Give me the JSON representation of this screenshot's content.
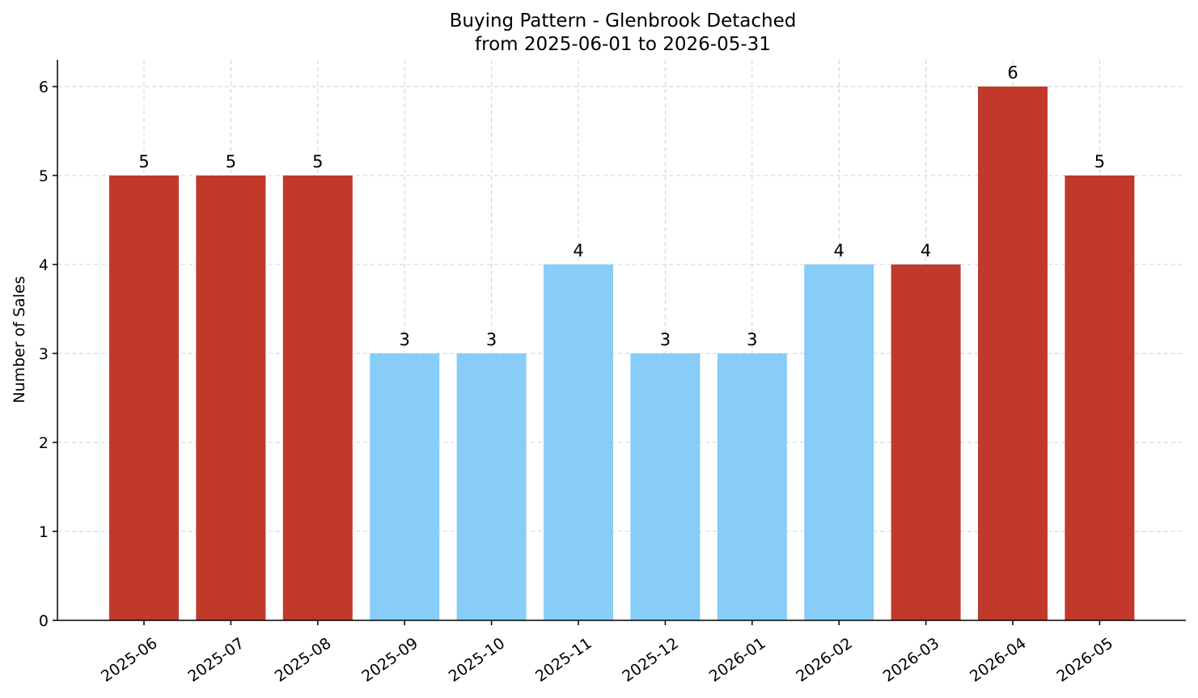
{
  "chart_data": {
    "type": "bar",
    "title": "Buying Pattern - Glenbrook Detached",
    "subtitle": "from 2025-06-01 to 2026-05-31",
    "ylabel": "Number of Sales",
    "xlabel": "",
    "categories": [
      "2025-06",
      "2025-07",
      "2025-08",
      "2025-09",
      "2025-10",
      "2025-11",
      "2025-12",
      "2026-01",
      "2026-02",
      "2026-03",
      "2026-04",
      "2026-05"
    ],
    "values": [
      5,
      5,
      5,
      3,
      3,
      4,
      3,
      3,
      4,
      4,
      6,
      5
    ],
    "bar_colors": [
      "#c0392b",
      "#c0392b",
      "#c0392b",
      "#87cdf8",
      "#87cdf8",
      "#87cdf8",
      "#87cdf8",
      "#87cdf8",
      "#87cdf8",
      "#c0392b",
      "#c0392b",
      "#c0392b"
    ],
    "ylim": [
      0,
      6.3
    ],
    "yticks": [
      0,
      1,
      2,
      3,
      4,
      5,
      6
    ],
    "grid": true,
    "legend": "none"
  }
}
